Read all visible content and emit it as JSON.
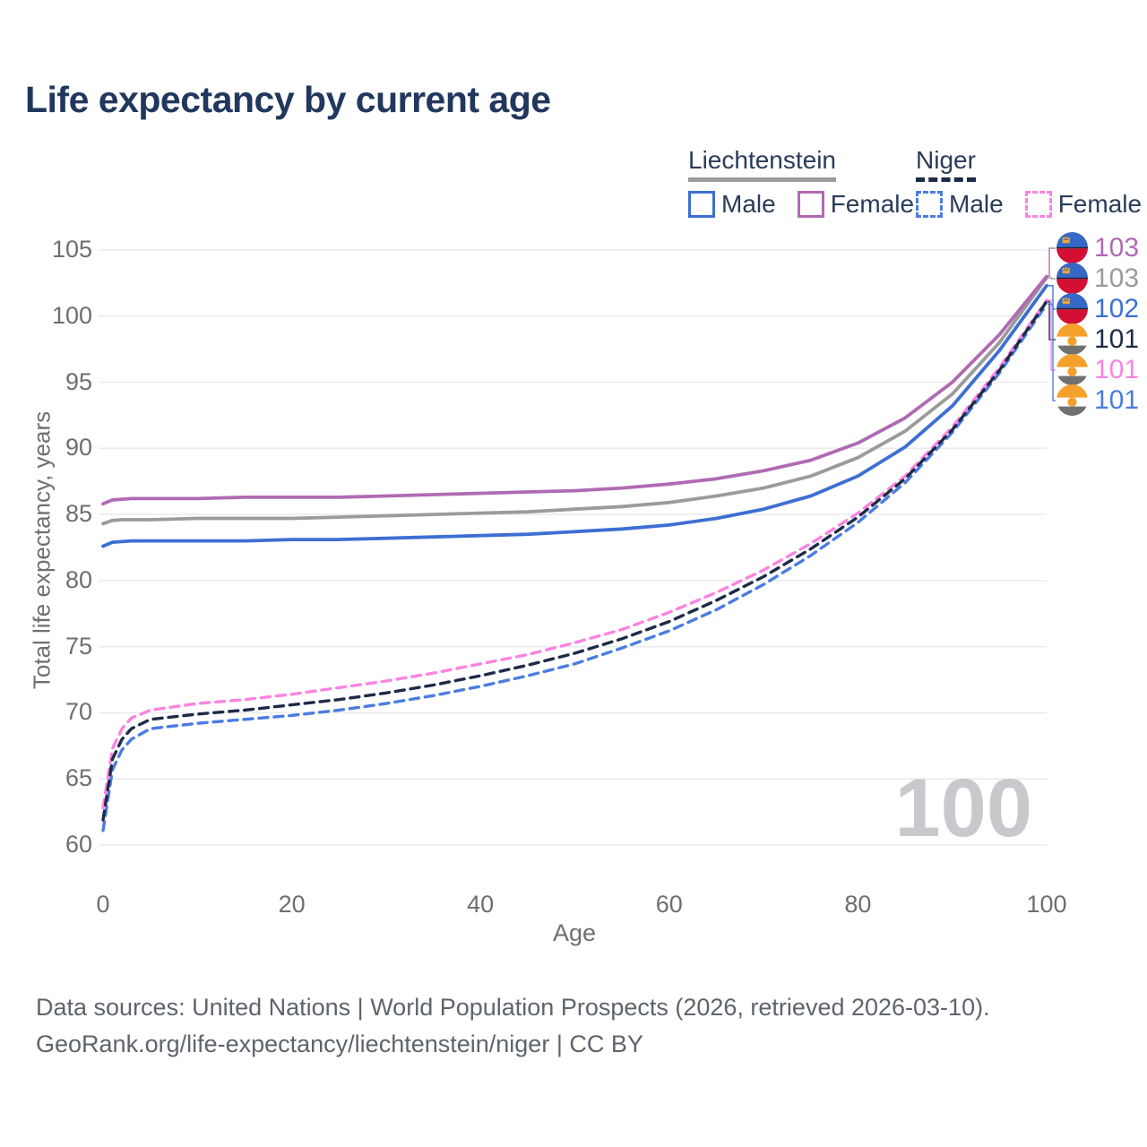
{
  "title": "Life expectancy by current age",
  "legend": {
    "liechtenstein": {
      "title": "Liechtenstein",
      "male": "Male",
      "female": "Female"
    },
    "niger": {
      "title": "Niger",
      "male": "Male",
      "female": "Female"
    }
  },
  "colors": {
    "liechtenstein_male": "#3d6fd3",
    "liechtenstein_female": "#b06ab3",
    "liechtenstein_both": "#9b9b9b",
    "niger_male": "#4a7ce2",
    "niger_female": "#fc83e2",
    "niger_both": "#1d2b47",
    "grid": "#ebebee",
    "axis_text": "#6e6e73",
    "title_text": "#21375d",
    "watermark": "#c8c8cd"
  },
  "right_labels": [
    {
      "flag": "liechtenstein",
      "value": "103",
      "color": "#b06ab3",
      "series": "Liechtenstein Female"
    },
    {
      "flag": "liechtenstein",
      "value": "103",
      "color": "#9b9b9b",
      "series": "Liechtenstein Both sexes"
    },
    {
      "flag": "liechtenstein",
      "value": "102",
      "color": "#3d6fd3",
      "series": "Liechtenstein Male"
    },
    {
      "flag": "niger",
      "value": "101",
      "color": "#1d2b47",
      "series": "Niger Both sexes"
    },
    {
      "flag": "niger",
      "value": "101",
      "color": "#fc83e2",
      "series": "Niger Female"
    },
    {
      "flag": "niger",
      "value": "101",
      "color": "#4a7ce2",
      "series": "Niger Male"
    }
  ],
  "footer": {
    "line1": "Data sources: United Nations | World Population Prospects (2026, retrieved 2026-03-10).",
    "line2": "GeoRank.org/life-expectancy/liechtenstein/niger | CC BY"
  },
  "chart_data": {
    "type": "line",
    "title": "Life expectancy by current age",
    "xlabel": "Age",
    "ylabel": "Total life expectancy, years",
    "xlim": [
      0,
      100
    ],
    "ylim": [
      60,
      105
    ],
    "xticks": [
      0,
      20,
      40,
      60,
      80,
      100
    ],
    "yticks": [
      60,
      65,
      70,
      75,
      80,
      85,
      90,
      95,
      100,
      105
    ],
    "grid": "horizontal",
    "legend_position": "top-right",
    "watermark": "100",
    "x": [
      0,
      1,
      2,
      3,
      5,
      10,
      15,
      20,
      25,
      30,
      35,
      40,
      45,
      50,
      55,
      60,
      65,
      70,
      75,
      80,
      85,
      90,
      95,
      100
    ],
    "series": [
      {
        "name": "Liechtenstein Male",
        "country": "Liechtenstein",
        "sex": "Male",
        "color": "#3d6fd3",
        "dash": "solid",
        "values": [
          82.6,
          82.9,
          82.95,
          83.0,
          83.0,
          83.0,
          83.0,
          83.1,
          83.1,
          83.2,
          83.3,
          83.4,
          83.5,
          83.7,
          83.9,
          84.2,
          84.7,
          85.4,
          86.4,
          87.9,
          90.1,
          93.2,
          97.4,
          102.3
        ],
        "end_label": "102"
      },
      {
        "name": "Liechtenstein Both sexes",
        "country": "Liechtenstein",
        "sex": "Both",
        "color": "#9b9b9b",
        "dash": "solid",
        "values": [
          84.3,
          84.55,
          84.6,
          84.6,
          84.6,
          84.7,
          84.7,
          84.7,
          84.8,
          84.9,
          85.0,
          85.1,
          85.2,
          85.4,
          85.6,
          85.9,
          86.4,
          87.0,
          87.9,
          89.3,
          91.3,
          94.1,
          98.0,
          102.9
        ],
        "end_label": "103"
      },
      {
        "name": "Liechtenstein Female",
        "country": "Liechtenstein",
        "sex": "Female",
        "color": "#b06ab3",
        "dash": "solid",
        "values": [
          85.8,
          86.1,
          86.15,
          86.2,
          86.2,
          86.2,
          86.3,
          86.3,
          86.3,
          86.4,
          86.5,
          86.6,
          86.7,
          86.8,
          87.0,
          87.3,
          87.7,
          88.3,
          89.1,
          90.4,
          92.3,
          95.0,
          98.6,
          103.0
        ],
        "end_label": "103"
      },
      {
        "name": "Niger Male",
        "country": "Niger",
        "sex": "Male",
        "color": "#4a7ce2",
        "dash": "dashed",
        "values": [
          61.1,
          65.7,
          67.2,
          68.0,
          68.8,
          69.2,
          69.5,
          69.8,
          70.2,
          70.7,
          71.3,
          72.0,
          72.8,
          73.7,
          74.9,
          76.2,
          77.8,
          79.7,
          81.9,
          84.4,
          87.4,
          91.2,
          95.7,
          100.9
        ],
        "end_label": "101"
      },
      {
        "name": "Niger Female",
        "country": "Niger",
        "sex": "Female",
        "color": "#fc83e2",
        "dash": "dashed",
        "values": [
          62.8,
          67.3,
          68.8,
          69.6,
          70.2,
          70.7,
          71.0,
          71.4,
          71.9,
          72.4,
          73.0,
          73.7,
          74.4,
          75.3,
          76.3,
          77.6,
          79.1,
          80.8,
          82.8,
          85.1,
          87.9,
          91.6,
          96.1,
          101.2
        ],
        "end_label": "101"
      },
      {
        "name": "Niger Both sexes",
        "country": "Niger",
        "sex": "Both",
        "color": "#1d2b47",
        "dash": "dashed",
        "values": [
          61.9,
          66.5,
          68.0,
          68.8,
          69.5,
          69.9,
          70.2,
          70.6,
          71.0,
          71.5,
          72.1,
          72.8,
          73.6,
          74.5,
          75.6,
          76.9,
          78.5,
          80.3,
          82.4,
          84.8,
          87.7,
          91.4,
          95.9,
          101.1
        ],
        "end_label": "101"
      }
    ]
  }
}
